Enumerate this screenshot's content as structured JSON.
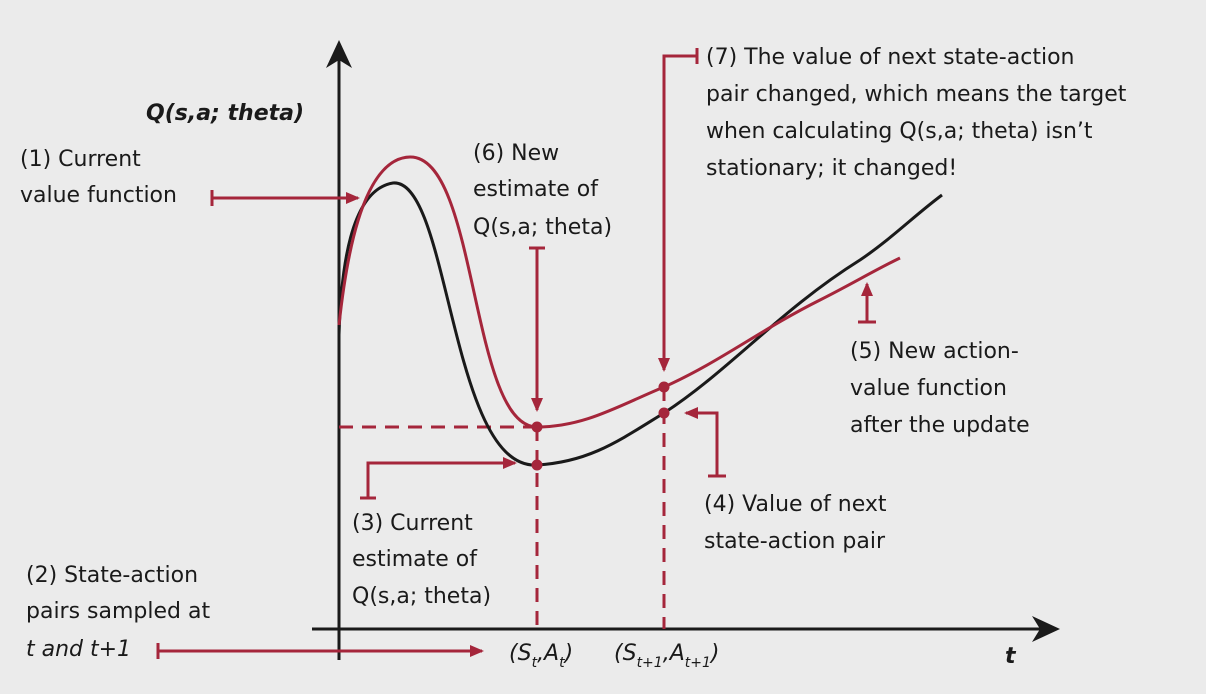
{
  "colors": {
    "background": "#ebebeb",
    "ink": "#1a1a1a",
    "accent": "#a5263b"
  },
  "labels": {
    "y_axis": "Q(s,a; theta)",
    "x_axis": "t",
    "x_tick_1": {
      "main": "(S",
      "sub1": "t",
      "mid": ",A",
      "sub2": "t",
      "end": ")"
    },
    "x_tick_2": {
      "main": "(S",
      "sub1": "t+1",
      "mid": ",A",
      "sub2": "t+1",
      "end": ")"
    }
  },
  "annotations": {
    "a1": [
      "(1) Current",
      "value function"
    ],
    "a2": [
      "(2) State-action",
      "pairs sampled at",
      "t and t+1"
    ],
    "a3": [
      "(3) Current",
      "estimate of",
      "Q(s,a; theta)"
    ],
    "a4": [
      "(4) Value of next",
      "state-action pair"
    ],
    "a5": [
      "(5) New action-",
      "value function",
      "after the update"
    ],
    "a6": [
      "(6) New",
      "estimate of",
      "Q(s,a; theta)"
    ],
    "a7": [
      "(7) The value of next state-action",
      "pair changed, which means the target",
      "when calculating Q(s,a; theta) isn’t",
      "stationary; it changed!"
    ]
  }
}
